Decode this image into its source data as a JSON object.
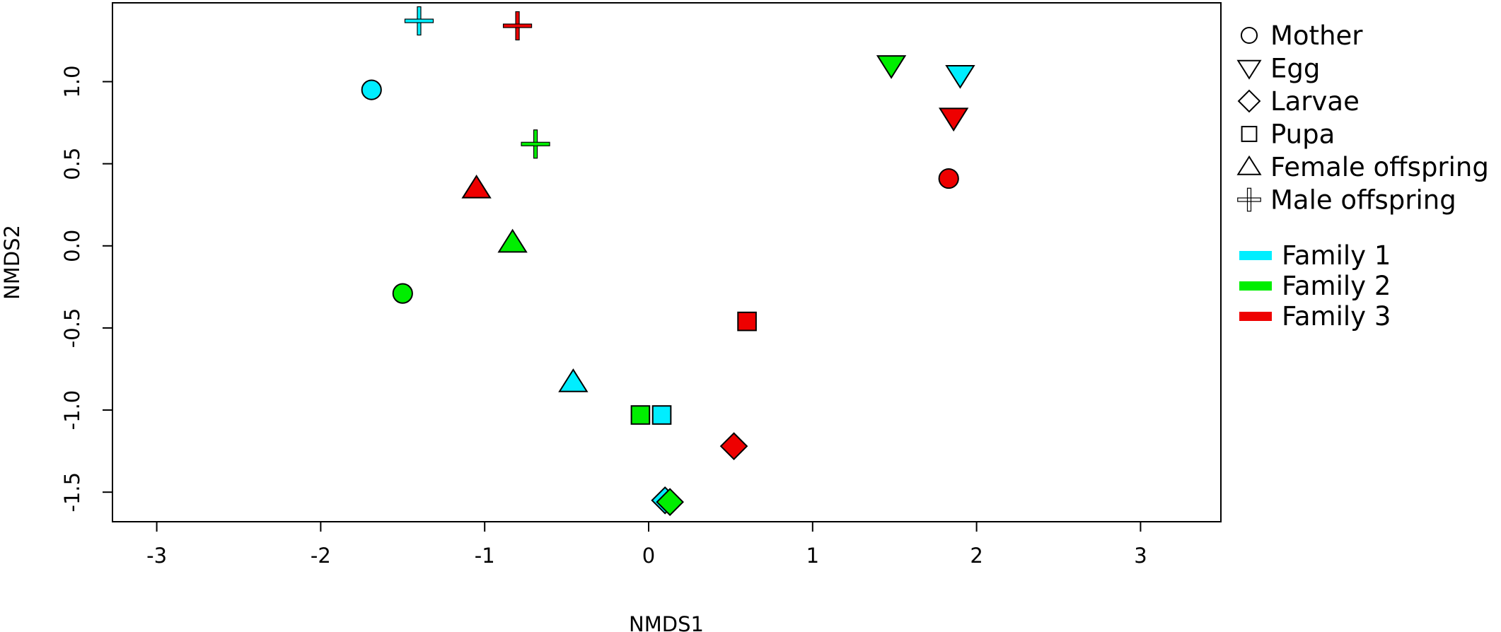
{
  "chart_data": {
    "type": "scatter",
    "title": "",
    "xlabel": "NMDS1",
    "ylabel": "NMDS2",
    "xlim": [
      -3.27,
      3.49
    ],
    "ylim": [
      -1.68,
      1.48
    ],
    "xticks": [
      {
        "value": -3,
        "label": "-3"
      },
      {
        "value": -2,
        "label": "-2"
      },
      {
        "value": -1,
        "label": "-1"
      },
      {
        "value": 0,
        "label": "0"
      },
      {
        "value": 1,
        "label": "1"
      },
      {
        "value": 2,
        "label": "2"
      },
      {
        "value": 3,
        "label": "3"
      }
    ],
    "yticks": [
      {
        "value": -1.5,
        "label": "-1.5"
      },
      {
        "value": -1.0,
        "label": "-1.0"
      },
      {
        "value": -0.5,
        "label": "-0.5"
      },
      {
        "value": 0.0,
        "label": "0.0"
      },
      {
        "value": 0.5,
        "label": "0.5"
      },
      {
        "value": 1.0,
        "label": "1.0"
      }
    ],
    "grid": false,
    "legend_position": "right",
    "shape_legend": [
      {
        "shape": "circle",
        "label": "Mother"
      },
      {
        "shape": "triangle-down",
        "label": "Egg"
      },
      {
        "shape": "diamond",
        "label": "Larvae"
      },
      {
        "shape": "square",
        "label": "Pupa"
      },
      {
        "shape": "triangle-up",
        "label": "Female offspring"
      },
      {
        "shape": "cross",
        "label": "Male offspring"
      }
    ],
    "color_legend": [
      {
        "key": "family1",
        "label": "Family 1",
        "color": "#00eeff"
      },
      {
        "key": "family2",
        "label": "Family 2",
        "color": "#00ee00"
      },
      {
        "key": "family3",
        "label": "Family 3",
        "color": "#ee0000"
      }
    ],
    "series": [
      {
        "family": "family1",
        "color": "#00eeff",
        "points": [
          {
            "stage": "Mother",
            "shape": "circle",
            "x": -1.69,
            "y": 0.95
          },
          {
            "stage": "Egg",
            "shape": "triangle-down",
            "x": 1.9,
            "y": 1.04
          },
          {
            "stage": "Larvae",
            "shape": "diamond",
            "x": 0.1,
            "y": -1.55
          },
          {
            "stage": "Pupa",
            "shape": "square",
            "x": 0.08,
            "y": -1.03
          },
          {
            "stage": "Female offspring",
            "shape": "triangle-up",
            "x": -0.46,
            "y": -0.83
          },
          {
            "stage": "Male offspring",
            "shape": "cross",
            "x": -1.4,
            "y": 1.37
          }
        ]
      },
      {
        "family": "family2",
        "color": "#00ee00",
        "points": [
          {
            "stage": "Mother",
            "shape": "circle",
            "x": -1.5,
            "y": -0.29
          },
          {
            "stage": "Egg",
            "shape": "triangle-down",
            "x": 1.48,
            "y": 1.1
          },
          {
            "stage": "Larvae",
            "shape": "diamond",
            "x": 0.13,
            "y": -1.56
          },
          {
            "stage": "Pupa",
            "shape": "square",
            "x": -0.05,
            "y": -1.03
          },
          {
            "stage": "Female offspring",
            "shape": "triangle-up",
            "x": -0.83,
            "y": 0.02
          },
          {
            "stage": "Male offspring",
            "shape": "cross",
            "x": -0.69,
            "y": 0.62
          }
        ]
      },
      {
        "family": "family3",
        "color": "#ee0000",
        "points": [
          {
            "stage": "Mother",
            "shape": "circle",
            "x": 1.83,
            "y": 0.41
          },
          {
            "stage": "Egg",
            "shape": "triangle-down",
            "x": 1.86,
            "y": 0.78
          },
          {
            "stage": "Larvae",
            "shape": "diamond",
            "x": 0.52,
            "y": -1.22
          },
          {
            "stage": "Pupa",
            "shape": "square",
            "x": 0.6,
            "y": -0.46
          },
          {
            "stage": "Female offspring",
            "shape": "triangle-up",
            "x": -1.05,
            "y": 0.35
          },
          {
            "stage": "Male offspring",
            "shape": "cross",
            "x": -0.8,
            "y": 1.34
          }
        ]
      }
    ]
  }
}
